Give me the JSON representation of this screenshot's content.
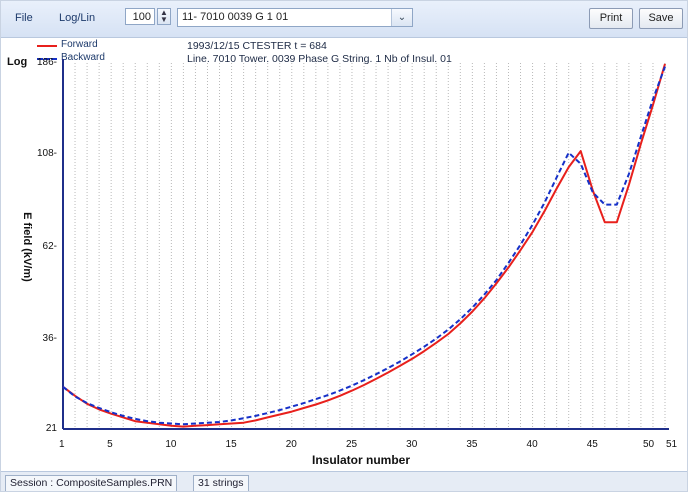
{
  "toolbar": {
    "file_label": "File",
    "scale_toggle_label": "Log/Lin",
    "spin_value": "100",
    "string_select_value": "11- 7010 0039 G  1 01",
    "print_label": "Print",
    "save_label": "Save"
  },
  "info": {
    "line1": "1993/12/15 CTESTER     t = 684",
    "line2": "Line. 7010 Tower. 0039 Phase G String.  1 Nb of Insul. 01"
  },
  "status": {
    "session": "Session : CompositeSamples.PRN",
    "strings": "31 strings"
  },
  "colors": {
    "forward": "#e8201c",
    "backward": "#1530c8",
    "axis": "#1f2f8a"
  },
  "chart_data": {
    "type": "line",
    "scale_label": "Log",
    "xlabel": "Insulator number",
    "ylabel": "E field (kV/m)",
    "y_scale": "log",
    "ylim": [
      21,
      186
    ],
    "yticks": [
      21,
      36,
      62,
      108,
      186
    ],
    "ytick_labels": [
      "21",
      "36-",
      "62-",
      "108-",
      "186-"
    ],
    "xlim": [
      1,
      51
    ],
    "xticks": [
      1,
      5,
      10,
      15,
      20,
      25,
      30,
      35,
      40,
      45,
      50,
      51
    ],
    "xtick_labels": [
      "1",
      "5",
      "10",
      "15",
      "20",
      "25",
      "30",
      "35",
      "40",
      "45",
      "50",
      "51"
    ],
    "grid": "vertical dotted",
    "legend_position": "top-left",
    "series": [
      {
        "name": "Forward",
        "style": "solid",
        "x": [
          1,
          2,
          3,
          4,
          5,
          6,
          7,
          8,
          9,
          10,
          11,
          12,
          13,
          14,
          15,
          16,
          17,
          18,
          19,
          20,
          21,
          22,
          23,
          24,
          25,
          26,
          27,
          28,
          29,
          30,
          31,
          32,
          33,
          34,
          35,
          36,
          37,
          38,
          39,
          40,
          41,
          42,
          43,
          44,
          45,
          46,
          47,
          48,
          49,
          50,
          51
        ],
        "y": [
          27,
          25.6,
          24.4,
          23.6,
          23,
          22.5,
          22,
          21.8,
          21.6,
          21.4,
          21.3,
          21.4,
          21.5,
          21.6,
          21.7,
          21.8,
          22.1,
          22.5,
          22.9,
          23.3,
          23.8,
          24.3,
          24.9,
          25.6,
          26.4,
          27.3,
          28.3,
          29.4,
          30.6,
          31.9,
          33.4,
          35.1,
          37,
          39.4,
          42.3,
          45.8,
          50,
          55,
          61,
          68,
          77,
          88,
          100,
          110,
          87,
          72,
          72,
          90,
          115,
          145,
          185
        ]
      },
      {
        "name": "Backward",
        "style": "dashed",
        "x": [
          1,
          2,
          3,
          4,
          5,
          6,
          7,
          8,
          9,
          10,
          11,
          12,
          13,
          14,
          15,
          16,
          17,
          18,
          19,
          20,
          21,
          22,
          23,
          24,
          25,
          26,
          27,
          28,
          29,
          30,
          31,
          32,
          33,
          34,
          35,
          36,
          37,
          38,
          39,
          40,
          41,
          42,
          43,
          44,
          45,
          46,
          47,
          48,
          49,
          50,
          51
        ],
        "y": [
          27,
          25.5,
          24.5,
          23.8,
          23.2,
          22.7,
          22.3,
          22,
          21.8,
          21.7,
          21.6,
          21.7,
          21.8,
          21.9,
          22.1,
          22.4,
          22.7,
          23.1,
          23.5,
          24,
          24.5,
          25.1,
          25.7,
          26.4,
          27.2,
          28.1,
          29.1,
          30.2,
          31.4,
          32.8,
          34.3,
          36,
          38,
          40.4,
          43.3,
          46.8,
          51,
          56.5,
          63,
          71,
          81,
          94,
          109,
          102,
          86,
          80,
          80,
          96,
          120,
          150,
          182
        ]
      }
    ]
  }
}
